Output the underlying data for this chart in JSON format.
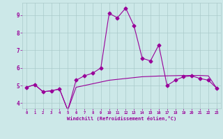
{
  "xlabel": "Windchill (Refroidissement éolien,°C)",
  "bg_color": "#cce8e8",
  "line_color": "#990099",
  "grid_color": "#aacaca",
  "xlim": [
    -0.5,
    23.5
  ],
  "ylim": [
    3.7,
    9.7
  ],
  "yticks": [
    4,
    5,
    6,
    7,
    8,
    9
  ],
  "xticks": [
    0,
    1,
    2,
    3,
    4,
    5,
    6,
    7,
    8,
    9,
    10,
    11,
    12,
    13,
    14,
    15,
    16,
    17,
    18,
    19,
    20,
    21,
    22,
    23
  ],
  "line1_x": [
    0,
    1,
    2,
    3,
    4,
    5,
    6,
    7,
    8,
    9,
    10,
    11,
    12,
    13,
    14,
    15,
    16,
    17,
    18,
    19,
    20,
    21,
    22,
    23
  ],
  "line1_y": [
    4.9,
    5.05,
    4.65,
    4.7,
    4.8,
    3.6,
    5.3,
    5.55,
    5.7,
    6.0,
    9.1,
    8.85,
    9.4,
    8.4,
    6.55,
    6.4,
    7.3,
    5.0,
    5.3,
    5.5,
    5.55,
    5.4,
    5.3,
    4.85
  ],
  "line2_x": [
    0,
    1,
    2,
    3,
    4,
    5,
    6,
    7,
    8,
    9,
    10,
    11,
    12,
    13,
    14,
    15,
    16,
    17,
    18,
    19,
    20,
    21,
    22,
    23
  ],
  "line2_y": [
    4.9,
    5.05,
    4.65,
    4.7,
    4.8,
    3.6,
    4.9,
    5.0,
    5.1,
    5.2,
    5.3,
    5.35,
    5.4,
    5.45,
    5.5,
    5.52,
    5.54,
    5.55,
    5.56,
    5.57,
    5.57,
    5.57,
    5.55,
    4.85
  ]
}
